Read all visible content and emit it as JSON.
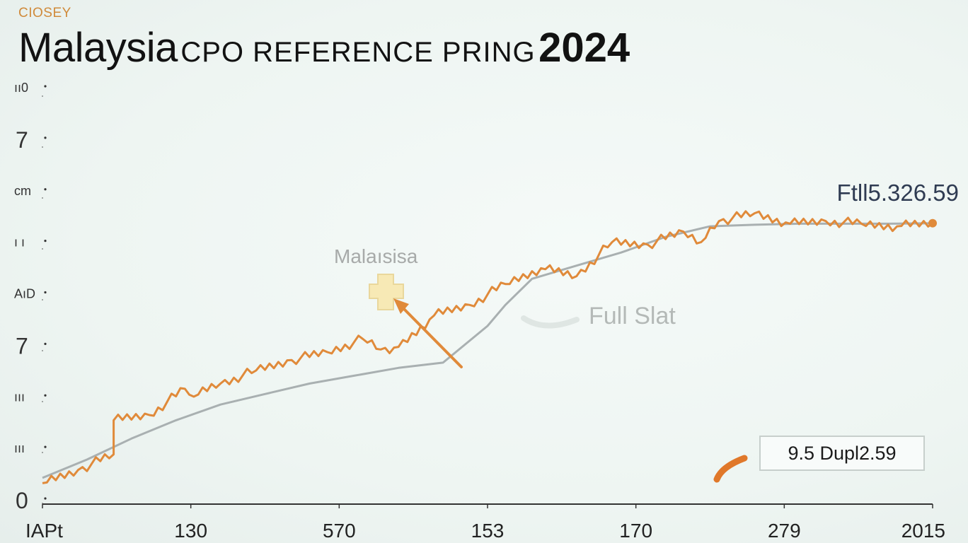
{
  "header": {
    "kicker": "CIOSEY",
    "title_main": "Malaysia",
    "title_mid": "CPO REFERENCE PRING",
    "title_year": "2024"
  },
  "annotations": {
    "latest_label": "Ftll5.326.59",
    "marker_label": "Malaısisa",
    "full_stat_label": "Full Slat",
    "value_box": "9.5 Dupl2.59"
  },
  "colors": {
    "price_line": "#e08a3a",
    "trend_line": "#a9b0b1",
    "axis": "#333333",
    "title": "#121212",
    "kicker": "#d08a3a",
    "marker_fill": "#f7e9b5"
  },
  "chart_data": {
    "type": "line",
    "title": "Malaysia CPO REFERENCE PRING 2024",
    "xlabel": "",
    "ylabel": "",
    "x_ticks": [
      "IAPt",
      "130",
      "570",
      "153",
      "170",
      "279",
      "2015"
    ],
    "y_ticks": [
      "0",
      "ııı",
      "ııı",
      "7",
      "AıD",
      "ı ı",
      "cm",
      "7",
      "ıı0"
    ],
    "xlim": [
      0,
      100
    ],
    "ylim": [
      0,
      8
    ],
    "grid": false,
    "legend": "none",
    "series": [
      {
        "values_description": "orange price series",
        "x": [
          0,
          4,
          8,
          8,
          12,
          16,
          17,
          20,
          24,
          28,
          32,
          36,
          38,
          40,
          44,
          48,
          52,
          56,
          60,
          64,
          68,
          72,
          74,
          76,
          80,
          84,
          88,
          92,
          96,
          100
        ],
        "y": [
          0.4,
          0.65,
          0.95,
          1.6,
          1.7,
          2.2,
          2.05,
          2.3,
          2.55,
          2.75,
          2.9,
          3.15,
          2.95,
          3.0,
          3.6,
          3.8,
          4.2,
          4.5,
          4.35,
          5.0,
          4.95,
          5.2,
          5.0,
          5.4,
          5.55,
          5.35,
          5.4,
          5.35,
          5.3,
          5.36
        ]
      },
      {
        "values_description": "grey trend series",
        "x": [
          0,
          5,
          10,
          15,
          20,
          25,
          30,
          35,
          40,
          45,
          50,
          52,
          55,
          60,
          65,
          70,
          75,
          80,
          85,
          90,
          95,
          100
        ],
        "y": [
          0.5,
          0.85,
          1.25,
          1.6,
          1.9,
          2.1,
          2.3,
          2.45,
          2.6,
          2.7,
          3.4,
          3.8,
          4.3,
          4.55,
          4.8,
          5.1,
          5.3,
          5.33,
          5.35,
          5.35,
          5.35,
          5.36
        ]
      }
    ]
  }
}
